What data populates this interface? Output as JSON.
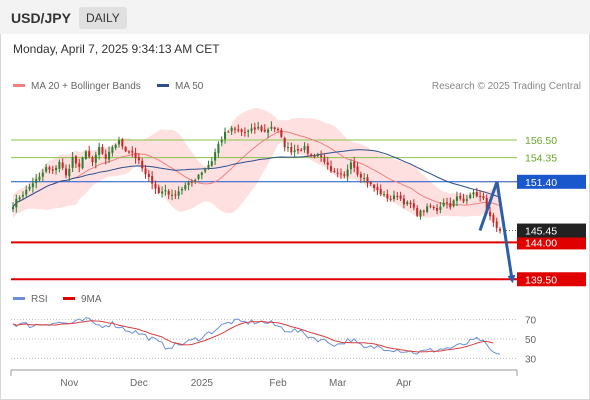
{
  "header": {
    "symbol": "USD/JPY",
    "period": "DAILY",
    "datetime": "Monday, April 7, 2025 9:34:13 AM CET"
  },
  "legend": {
    "ma20_label": "MA 20 + Bollinger Bands",
    "ma50_label": "MA 50",
    "credit": "Research © 2025 Trading Central",
    "rsi_label": "RSI",
    "ma9_label": "9MA"
  },
  "colors": {
    "up": "#2e7d32",
    "down": "#c62828",
    "ma20": "#f08080",
    "ma50": "#2c4f8f",
    "band": "#ffd6d6",
    "resistance": "#8bc34a",
    "pivot": "#1a56cc",
    "support": "#e00000",
    "arrow": "#2c5fa8",
    "rsi": "#6a8fd8",
    "rsi_ma": "#d84040"
  },
  "chart_data": [
    {
      "type": "candlestick",
      "title": "USD/JPY",
      "x_ticks": [
        "Nov",
        "Dec",
        "2025",
        "Feb",
        "Mar",
        "Apr"
      ],
      "y_range": [
        138.8,
        162.0
      ],
      "y_ticks": [],
      "series": [
        {
          "name": "MA 20",
          "type": "line"
        },
        {
          "name": "MA 50",
          "type": "line"
        },
        {
          "name": "Bollinger Bands",
          "type": "area"
        }
      ],
      "last_price": "145.45",
      "levels": [
        {
          "value": 156.5,
          "label": "156.50",
          "kind": "resistance"
        },
        {
          "value": 154.35,
          "label": "154.35",
          "kind": "resistance"
        },
        {
          "value": 151.4,
          "label": "151.40",
          "kind": "pivot"
        },
        {
          "value": 144.0,
          "label": "144.00",
          "kind": "support"
        },
        {
          "value": 139.5,
          "label": "139.50",
          "kind": "support"
        }
      ],
      "forecast_path": [
        145.45,
        151.4,
        139.5
      ],
      "close_anchors": [
        [
          0,
          148.6
        ],
        [
          2,
          149.6
        ],
        [
          4,
          150.3
        ],
        [
          6,
          151.3
        ],
        [
          8,
          151.9
        ],
        [
          10,
          153.1
        ],
        [
          12,
          152.6
        ],
        [
          14,
          153.9
        ],
        [
          16,
          152.1
        ],
        [
          18,
          154.3
        ],
        [
          20,
          153.0
        ],
        [
          22,
          155.3
        ],
        [
          24,
          153.6
        ],
        [
          26,
          155.6
        ],
        [
          28,
          154.0
        ],
        [
          30,
          155.7
        ],
        [
          32,
          156.3
        ],
        [
          34,
          155.3
        ],
        [
          36,
          155.0
        ],
        [
          38,
          153.8
        ],
        [
          40,
          152.2
        ],
        [
          42,
          151.4
        ],
        [
          44,
          150.0
        ],
        [
          46,
          150.4
        ],
        [
          48,
          149.6
        ],
        [
          50,
          150.3
        ],
        [
          52,
          150.9
        ],
        [
          54,
          151.3
        ],
        [
          56,
          152.3
        ],
        [
          58,
          153.0
        ],
        [
          60,
          154.0
        ],
        [
          62,
          156.0
        ],
        [
          64,
          157.3
        ],
        [
          66,
          157.8
        ],
        [
          68,
          157.6
        ],
        [
          70,
          157.4
        ],
        [
          72,
          157.7
        ],
        [
          74,
          158.0
        ],
        [
          76,
          157.5
        ],
        [
          78,
          158.2
        ],
        [
          80,
          157.6
        ],
        [
          82,
          155.8
        ],
        [
          84,
          155.2
        ],
        [
          86,
          155.4
        ],
        [
          88,
          155.5
        ],
        [
          90,
          154.5
        ],
        [
          92,
          154.8
        ],
        [
          94,
          154.0
        ],
        [
          96,
          152.5
        ],
        [
          98,
          152.3
        ],
        [
          100,
          152.0
        ],
        [
          102,
          154.0
        ],
        [
          104,
          152.5
        ],
        [
          106,
          151.8
        ],
        [
          108,
          151.0
        ],
        [
          110,
          150.3
        ],
        [
          112,
          149.7
        ],
        [
          114,
          149.3
        ],
        [
          116,
          149.8
        ],
        [
          118,
          148.9
        ],
        [
          120,
          148.6
        ],
        [
          122,
          147.5
        ],
        [
          124,
          147.9
        ],
        [
          126,
          148.4
        ],
        [
          128,
          148.0
        ],
        [
          130,
          149.0
        ],
        [
          132,
          148.5
        ],
        [
          134,
          149.5
        ],
        [
          136,
          149.0
        ],
        [
          138,
          150.0
        ],
        [
          140,
          149.8
        ],
        [
          142,
          149.2
        ],
        [
          144,
          147.0
        ],
        [
          146,
          145.5
        ],
        [
          147,
          145.45
        ]
      ]
    },
    {
      "type": "line",
      "title": "RSI",
      "y_range": [
        20,
        80
      ],
      "y_ticks": [
        70,
        50,
        30
      ],
      "series": [
        {
          "name": "RSI"
        },
        {
          "name": "9MA"
        }
      ],
      "rsi_anchors": [
        [
          0,
          66
        ],
        [
          6,
          64
        ],
        [
          12,
          67
        ],
        [
          18,
          66
        ],
        [
          22,
          70
        ],
        [
          26,
          64
        ],
        [
          30,
          66
        ],
        [
          34,
          60
        ],
        [
          38,
          56
        ],
        [
          42,
          50
        ],
        [
          46,
          42
        ],
        [
          50,
          44
        ],
        [
          54,
          48
        ],
        [
          58,
          54
        ],
        [
          62,
          62
        ],
        [
          66,
          68
        ],
        [
          70,
          67
        ],
        [
          74,
          68
        ],
        [
          78,
          66
        ],
        [
          82,
          60
        ],
        [
          86,
          58
        ],
        [
          90,
          52
        ],
        [
          94,
          48
        ],
        [
          98,
          44
        ],
        [
          102,
          50
        ],
        [
          106,
          40
        ],
        [
          110,
          42
        ],
        [
          114,
          40
        ],
        [
          118,
          38
        ],
        [
          122,
          36
        ],
        [
          126,
          38
        ],
        [
          130,
          40
        ],
        [
          134,
          42
        ],
        [
          138,
          47
        ],
        [
          141,
          50
        ],
        [
          144,
          38
        ],
        [
          147,
          32
        ]
      ]
    }
  ]
}
